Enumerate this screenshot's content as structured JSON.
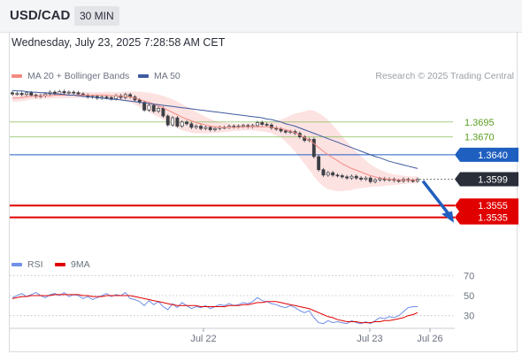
{
  "header": {
    "symbol": "USD/CAD",
    "timeframe": "30 MIN"
  },
  "timestamp": "Wednesday, July 23, 2025 7:28:58 AM CET",
  "legend": {
    "ma20": "MA 20 + Bollinger Bands",
    "ma50": "MA 50",
    "rsi": "RSI",
    "rsi_ma": "9MA",
    "credit": "Research © 2025 Trading Central"
  },
  "colors": {
    "ma20": "#f28b82",
    "ma50": "#3d5a9e",
    "bands": "#fde0e0",
    "support": "#e00000",
    "resistance": "#7cba4a",
    "pivot": "#1f5fbf",
    "last": "#2a2e39",
    "rsi": "#6f8fe8",
    "rsi_ma": "#e00000",
    "arrow": "#1f5fbf",
    "candle": "#3c3f45"
  },
  "chart_data": [
    {
      "type": "candlestick",
      "ylim": [
        1.349,
        1.3763
      ],
      "x_ticks": [
        "Jul 22",
        "Jul 23",
        "Jul 26"
      ],
      "levels": [
        {
          "label": "1.3695",
          "value": 1.3695,
          "kind": "resistance"
        },
        {
          "label": "1.3670",
          "value": 1.367,
          "kind": "resistance"
        },
        {
          "label": "1.3640",
          "value": 1.364,
          "kind": "pivot"
        },
        {
          "label": "1.3599",
          "value": 1.3599,
          "kind": "last"
        },
        {
          "label": "1.3555",
          "value": 1.3555,
          "kind": "support"
        },
        {
          "label": "1.3535",
          "value": 1.3535,
          "kind": "support"
        }
      ],
      "forecast": {
        "from": 1.3599,
        "to": 1.3535
      },
      "close": [
        1.3742,
        1.3743,
        1.3741,
        1.3744,
        1.374,
        1.3738,
        1.3739,
        1.3742,
        1.3745,
        1.3742,
        1.3746,
        1.3744,
        1.3745,
        1.3744,
        1.3742,
        1.374,
        1.3737,
        1.3738,
        1.3735,
        1.3737,
        1.3736,
        1.3734,
        1.3739,
        1.3736,
        1.3741,
        1.3737,
        1.3732,
        1.3728,
        1.3715,
        1.3723,
        1.3713,
        1.3718,
        1.3705,
        1.369,
        1.3702,
        1.3688,
        1.3695,
        1.3692,
        1.3686,
        1.3688,
        1.3684,
        1.3686,
        1.3682,
        1.3684,
        1.3686,
        1.3686,
        1.3688,
        1.3687,
        1.3688,
        1.3689,
        1.3687,
        1.3689,
        1.3694,
        1.3691,
        1.369,
        1.3685,
        1.3683,
        1.368,
        1.3678,
        1.3679,
        1.3676,
        1.367,
        1.3664,
        1.3666,
        1.3637,
        1.3615,
        1.3606,
        1.361,
        1.3606,
        1.3605,
        1.3603,
        1.3601,
        1.3604,
        1.3601,
        1.3599,
        1.3601,
        1.3595,
        1.3598,
        1.36,
        1.3598,
        1.3599,
        1.3597,
        1.3596,
        1.3599,
        1.3597,
        1.3596,
        1.3599
      ],
      "ma20": [
        1.3735,
        1.3735,
        1.3736,
        1.3737,
        1.3738,
        1.3738,
        1.3738,
        1.3739,
        1.3739,
        1.374,
        1.374,
        1.374,
        1.374,
        1.374,
        1.374,
        1.374,
        1.374,
        1.374,
        1.374,
        1.374,
        1.374,
        1.3739,
        1.3739,
        1.3738,
        1.3738,
        1.3737,
        1.3735,
        1.3733,
        1.373,
        1.3728,
        1.3725,
        1.3722,
        1.3719,
        1.3715,
        1.3711,
        1.3707,
        1.3703,
        1.37,
        1.3697,
        1.3694,
        1.3692,
        1.369,
        1.3688,
        1.3687,
        1.3686,
        1.3686,
        1.3686,
        1.3686,
        1.3686,
        1.3687,
        1.3687,
        1.3687,
        1.3687,
        1.3687,
        1.3687,
        1.3686,
        1.3685,
        1.3684,
        1.3682,
        1.368,
        1.3677,
        1.3673,
        1.3669,
        1.3665,
        1.3659,
        1.3652,
        1.3646,
        1.364,
        1.3635,
        1.363,
        1.3625,
        1.3621,
        1.3617,
        1.3614,
        1.3611,
        1.3608,
        1.3605,
        1.3603,
        1.3601,
        1.36,
        1.3599,
        1.3598,
        1.3598,
        1.3598,
        1.3598,
        1.3598,
        1.3598
      ],
      "ma50": [
        1.3748,
        1.3747,
        1.3747,
        1.3746,
        1.3745,
        1.3745,
        1.3744,
        1.3744,
        1.3743,
        1.3742,
        1.3742,
        1.3741,
        1.374,
        1.374,
        1.3739,
        1.3738,
        1.3737,
        1.3737,
        1.3736,
        1.3735,
        1.3734,
        1.3733,
        1.3733,
        1.3732,
        1.3731,
        1.373,
        1.3729,
        1.3728,
        1.3727,
        1.3726,
        1.3725,
        1.3724,
        1.3723,
        1.3722,
        1.3721,
        1.372,
        1.3719,
        1.3718,
        1.3717,
        1.3716,
        1.3715,
        1.3714,
        1.3713,
        1.3712,
        1.3711,
        1.371,
        1.3709,
        1.3708,
        1.3707,
        1.3706,
        1.3705,
        1.3704,
        1.3703,
        1.3702,
        1.37,
        1.3699,
        1.3697,
        1.3695,
        1.3692,
        1.369,
        1.3688,
        1.3685,
        1.3682,
        1.3679,
        1.3676,
        1.3673,
        1.367,
        1.3667,
        1.3664,
        1.3661,
        1.3658,
        1.3655,
        1.3652,
        1.3649,
        1.3646,
        1.3643,
        1.364,
        1.3637,
        1.3635,
        1.3632,
        1.3629,
        1.3627,
        1.3625,
        1.3623,
        1.3621,
        1.3619,
        1.3617
      ],
      "band_width": [
        0.0006,
        0.0006,
        0.0006,
        0.0006,
        0.0005,
        0.0005,
        0.0005,
        0.0005,
        0.0005,
        0.0005,
        0.0005,
        0.0005,
        0.0005,
        0.0005,
        0.0005,
        0.0005,
        0.0005,
        0.0005,
        0.0005,
        0.0005,
        0.0006,
        0.0006,
        0.0006,
        0.0007,
        0.0008,
        0.0009,
        0.0011,
        0.0013,
        0.0015,
        0.0016,
        0.0018,
        0.0019,
        0.002,
        0.0021,
        0.0022,
        0.0022,
        0.0022,
        0.0021,
        0.002,
        0.0018,
        0.0016,
        0.0014,
        0.0012,
        0.001,
        0.0009,
        0.0008,
        0.0007,
        0.0006,
        0.0006,
        0.0006,
        0.0006,
        0.0006,
        0.0007,
        0.0008,
        0.0009,
        0.001,
        0.0012,
        0.0015,
        0.002,
        0.0026,
        0.0032,
        0.0038,
        0.0044,
        0.005,
        0.0055,
        0.0058,
        0.0059,
        0.0058,
        0.0055,
        0.0051,
        0.0046,
        0.0041,
        0.0036,
        0.0031,
        0.0027,
        0.0023,
        0.0019,
        0.0016,
        0.0014,
        0.0012,
        0.001,
        0.0009,
        0.0008,
        0.0007,
        0.0006,
        0.0006,
        0.0006
      ]
    },
    {
      "type": "line",
      "name": "RSI",
      "ylim": [
        20,
        80
      ],
      "y_ticks": [
        70,
        50,
        30
      ],
      "series": [
        {
          "name": "RSI",
          "values": [
            48,
            50,
            52,
            49,
            51,
            53,
            50,
            48,
            51,
            52,
            50,
            53,
            49,
            51,
            50,
            47,
            49,
            46,
            48,
            50,
            52,
            49,
            51,
            50,
            53,
            47,
            46,
            44,
            40,
            45,
            41,
            44,
            39,
            36,
            42,
            38,
            43,
            40,
            37,
            39,
            38,
            40,
            37,
            39,
            41,
            40,
            42,
            40,
            41,
            43,
            42,
            44,
            48,
            45,
            44,
            42,
            41,
            39,
            38,
            40,
            38,
            35,
            33,
            35,
            28,
            23,
            22,
            25,
            23,
            24,
            23,
            22,
            25,
            23,
            22,
            24,
            22,
            25,
            28,
            27,
            29,
            28,
            30,
            34,
            38,
            39,
            39
          ]
        },
        {
          "name": "9MA",
          "values": [
            47,
            48,
            49,
            49,
            50,
            50,
            50,
            50,
            50,
            51,
            51,
            51,
            51,
            51,
            51,
            50,
            50,
            49,
            49,
            49,
            50,
            50,
            50,
            50,
            50,
            50,
            49,
            48,
            47,
            46,
            45,
            44,
            43,
            42,
            41,
            40,
            40,
            40,
            40,
            40,
            39,
            39,
            39,
            39,
            39,
            39,
            40,
            40,
            40,
            41,
            41,
            42,
            43,
            43,
            44,
            44,
            44,
            43,
            42,
            41,
            40,
            39,
            38,
            37,
            35,
            33,
            31,
            29,
            28,
            26,
            25,
            24,
            24,
            24,
            23,
            23,
            23,
            24,
            24,
            25,
            25,
            26,
            27,
            28,
            30,
            31,
            33
          ]
        }
      ]
    }
  ]
}
